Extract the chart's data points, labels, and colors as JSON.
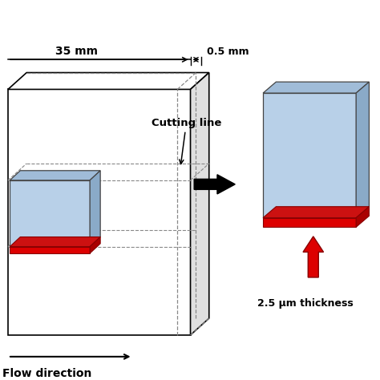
{
  "bg_color": "#ffffff",
  "light_blue": "#b8d0e8",
  "light_blue_top": "#a0bcd8",
  "light_blue_right": "#8aaac8",
  "red_color": "#dd0000",
  "red_top": "#cc1111",
  "red_right": "#aa0000",
  "box_edge": "#444444",
  "dashed_color": "#888888",
  "black": "#000000",
  "label_35mm": "35 mm",
  "label_05mm": "0.5 mm",
  "label_cutting": "Cutting line",
  "label_flow": "Flow direction",
  "label_thickness": "2.5 μm thickness",
  "fig_width": 4.74,
  "fig_height": 4.74,
  "dpi": 100
}
